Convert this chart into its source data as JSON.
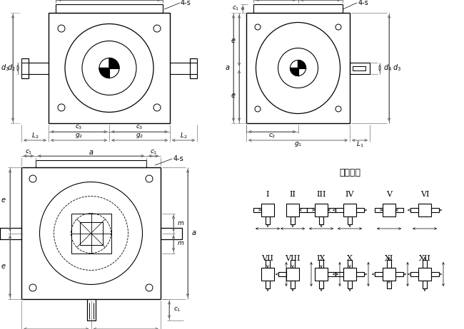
{
  "bg_color": "#ffffff",
  "line_color": "#000000",
  "gray_color": "#555555",
  "assembly_title": "装配形式",
  "roman_labels_row1": [
    "I",
    "II",
    "III",
    "IV",
    "V",
    "VI"
  ],
  "roman_labels_row2": [
    "VII",
    "VIII",
    "IX",
    "X",
    "XI",
    "XII"
  ]
}
